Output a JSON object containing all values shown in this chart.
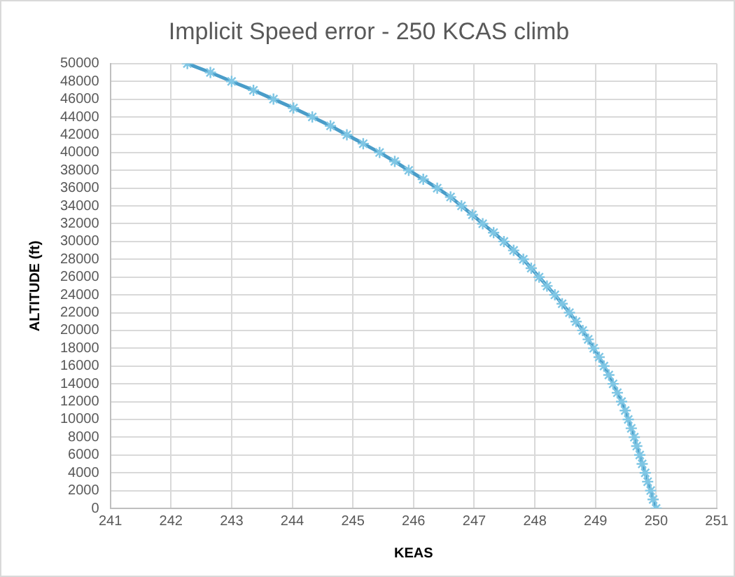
{
  "chart_data": {
    "type": "line",
    "title": "Implicit Speed error - 250 KCAS climb",
    "xlabel": "KEAS",
    "ylabel": "ALTITUDE (ft)",
    "x": [
      250.0,
      249.95,
      249.91,
      249.86,
      249.82,
      249.77,
      249.73,
      249.68,
      249.64,
      249.59,
      249.54,
      249.49,
      249.43,
      249.36,
      249.29,
      249.22,
      249.14,
      249.06,
      248.97,
      248.88,
      248.79,
      248.68,
      248.57,
      248.45,
      248.33,
      248.2,
      248.07,
      247.94,
      247.81,
      247.65,
      247.49,
      247.32,
      247.14,
      246.97,
      246.79,
      246.61,
      246.39,
      246.16,
      245.92,
      245.69,
      245.44,
      245.17,
      244.9,
      244.63,
      244.33,
      244.02,
      243.69,
      243.36,
      243.0,
      242.65,
      242.27
    ],
    "series": [
      {
        "color": "#4a9dc9",
        "values": [
          0,
          1000,
          2000,
          3000,
          4000,
          5000,
          6000,
          7000,
          8000,
          9000,
          10000,
          11000,
          12000,
          13000,
          14000,
          15000,
          16000,
          17000,
          18000,
          19000,
          20000,
          21000,
          22000,
          23000,
          24000,
          25000,
          26000,
          27000,
          28000,
          29000,
          30000,
          31000,
          32000,
          33000,
          34000,
          35000,
          36000,
          37000,
          38000,
          39000,
          40000,
          41000,
          42000,
          43000,
          44000,
          45000,
          46000,
          47000,
          48000,
          49000,
          50000
        ]
      }
    ],
    "xlim": [
      241,
      251
    ],
    "xticks": [
      241,
      242,
      243,
      244,
      245,
      246,
      247,
      248,
      249,
      250,
      251
    ],
    "ylim": [
      0,
      50000
    ],
    "yticks": [
      0,
      2000,
      4000,
      6000,
      8000,
      10000,
      12000,
      14000,
      16000,
      18000,
      20000,
      22000,
      24000,
      26000,
      28000,
      30000,
      32000,
      34000,
      36000,
      38000,
      40000,
      42000,
      44000,
      46000,
      48000,
      50000
    ],
    "grid": true,
    "legend": false,
    "marker": "cross",
    "line_style": "solid"
  }
}
